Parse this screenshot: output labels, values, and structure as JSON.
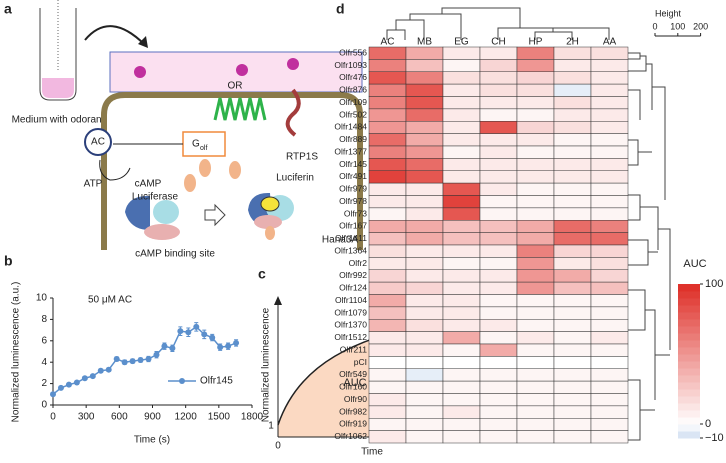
{
  "figure": {
    "a": {
      "label": "a",
      "medium": "Medium with odorant",
      "or": "OR",
      "ac": "AC",
      "golf_g": "G",
      "golf_sub": "olf",
      "rtp": "RTP1S",
      "atp": "ATP",
      "camp": "cAMP",
      "luciferase": "Luciferase",
      "luciferin": "Luciferin",
      "binding": "cAMP binding site",
      "cell": "Hana3A"
    },
    "b": {
      "label": "b",
      "chart": {
        "type": "line",
        "title": "50 μM AC",
        "xlabel": "Time (s)",
        "ylabel": "Normalized luminescence (a.u.)",
        "x": [
          0,
          72,
          144,
          216,
          288,
          360,
          432,
          504,
          576,
          648,
          720,
          792,
          864,
          936,
          1008,
          1080,
          1152,
          1224,
          1296,
          1368,
          1440,
          1512,
          1584,
          1656
        ],
        "series": [
          {
            "name": "Olfr145",
            "color": "#5b8fcc",
            "values": [
              1.0,
              1.6,
              1.9,
              2.1,
              2.5,
              2.7,
              3.2,
              3.3,
              4.3,
              4.0,
              4.1,
              4.2,
              4.3,
              4.7,
              5.5,
              5.3,
              6.9,
              6.8,
              7.3,
              6.6,
              6.3,
              5.4,
              5.5,
              5.8
            ],
            "errors": [
              0.1,
              0.1,
              0.1,
              0.1,
              0.1,
              0.1,
              0.15,
              0.15,
              0.2,
              0.2,
              0.2,
              0.2,
              0.25,
              0.3,
              0.3,
              0.3,
              0.4,
              0.4,
              0.4,
              0.4,
              0.3,
              0.3,
              0.3,
              0.3
            ]
          }
        ],
        "xlim": [
          0,
          1800
        ],
        "xticks": [
          0,
          300,
          600,
          900,
          1200,
          1500,
          1800
        ],
        "ylim": [
          0,
          10
        ],
        "yticks": [
          0,
          2,
          4,
          6,
          8,
          10
        ]
      }
    },
    "c": {
      "label": "c",
      "ylabel": "Normalized luminescence",
      "xlabel": "Time",
      "area": "AUC",
      "one": "1",
      "zero": "0"
    },
    "d": {
      "label": "d",
      "chart": {
        "type": "heatmap",
        "columns": [
          "AC",
          "MB",
          "EG",
          "CH",
          "HP",
          "2H",
          "AA"
        ],
        "rows": [
          "Olfr556",
          "Olfr1093",
          "Olfr476",
          "Olfr876",
          "Olfr109",
          "Olfr502",
          "Olfr1484",
          "Olfr889",
          "Olfr1377",
          "Olfr145",
          "Olfr491",
          "Olfr979",
          "Olfr978",
          "Olfr73",
          "Olfr167",
          "Olfr1411",
          "Olfr1364",
          "Olfr2",
          "Olfr992",
          "Olfr124",
          "Olfr1104",
          "Olfr1079",
          "Olfr1370",
          "Olfr1512",
          "Olfr211",
          "pCI",
          "Olfr549",
          "Olfr160",
          "Olfr90",
          "Olfr982",
          "Olfr919",
          "Olfr1062"
        ],
        "values": [
          [
            70,
            40,
            10,
            10,
            60,
            15,
            15
          ],
          [
            60,
            30,
            5,
            20,
            50,
            10,
            10
          ],
          [
            80,
            60,
            15,
            15,
            20,
            15,
            10
          ],
          [
            60,
            80,
            10,
            15,
            15,
            -5,
            10
          ],
          [
            60,
            80,
            10,
            10,
            10,
            15,
            10
          ],
          [
            50,
            70,
            10,
            5,
            5,
            10,
            10
          ],
          [
            50,
            40,
            10,
            80,
            20,
            15,
            10
          ],
          [
            70,
            40,
            10,
            10,
            10,
            5,
            5
          ],
          [
            60,
            50,
            5,
            10,
            5,
            5,
            5
          ],
          [
            80,
            70,
            10,
            10,
            10,
            10,
            10
          ],
          [
            90,
            80,
            10,
            10,
            10,
            10,
            10
          ],
          [
            10,
            10,
            80,
            10,
            5,
            5,
            5
          ],
          [
            10,
            10,
            90,
            5,
            5,
            5,
            5
          ],
          [
            5,
            10,
            80,
            5,
            5,
            5,
            5
          ],
          [
            40,
            40,
            30,
            30,
            40,
            70,
            60
          ],
          [
            30,
            40,
            30,
            30,
            40,
            70,
            70
          ],
          [
            15,
            10,
            10,
            10,
            60,
            20,
            20
          ],
          [
            10,
            10,
            5,
            5,
            50,
            10,
            15
          ],
          [
            20,
            10,
            10,
            10,
            50,
            40,
            20
          ],
          [
            25,
            20,
            10,
            10,
            50,
            30,
            30
          ],
          [
            40,
            10,
            10,
            5,
            5,
            5,
            5
          ],
          [
            30,
            10,
            10,
            5,
            5,
            5,
            5
          ],
          [
            35,
            15,
            10,
            10,
            5,
            5,
            5
          ],
          [
            10,
            10,
            40,
            5,
            10,
            5,
            10
          ],
          [
            10,
            10,
            5,
            40,
            5,
            5,
            5
          ],
          [
            0,
            0,
            0,
            0,
            0,
            0,
            0
          ],
          [
            5,
            -5,
            5,
            5,
            5,
            5,
            5
          ],
          [
            5,
            5,
            5,
            5,
            5,
            5,
            5
          ],
          [
            10,
            5,
            5,
            5,
            5,
            5,
            5
          ],
          [
            10,
            5,
            10,
            5,
            5,
            5,
            5
          ],
          [
            5,
            5,
            5,
            5,
            5,
            5,
            5
          ],
          [
            10,
            5,
            5,
            5,
            5,
            5,
            5
          ]
        ],
        "colorbar": {
          "title": "AUC",
          "lim": [
            -10,
            100
          ],
          "ticks": [
            100,
            0,
            {
              "value": -10,
              "label": "−10"
            }
          ]
        },
        "height": {
          "label": "Height",
          "lim": [
            0,
            250
          ],
          "ticks": [
            0,
            100,
            200
          ]
        }
      }
    }
  }
}
